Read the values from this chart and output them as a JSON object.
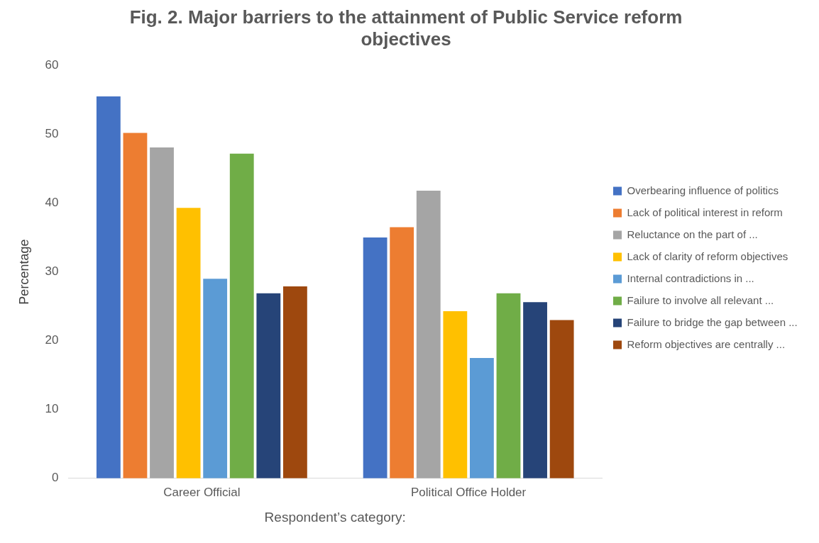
{
  "chart_data": {
    "type": "bar",
    "title": "Fig. 2. Major barriers to the attainment of Public Service reform objectives",
    "xlabel": "Respondent’s category:",
    "ylabel": "Percentage",
    "categories": [
      "Career Official",
      "Political Office Holder"
    ],
    "series": [
      {
        "name": "Overbearing influence of politics",
        "color": "#4472c4",
        "values": [
          55.5,
          35
        ]
      },
      {
        "name": "Lack of political interest in reform",
        "color": "#ed7d31",
        "values": [
          50.2,
          36.5
        ]
      },
      {
        "name": "Reluctance on the part of ...",
        "color": "#a5a5a5",
        "values": [
          48.1,
          41.8
        ]
      },
      {
        "name": "Lack of clarity of reform objectives",
        "color": "#ffc000",
        "values": [
          39.3,
          24.3
        ]
      },
      {
        "name": "Internal contradictions in ...",
        "color": "#5b9bd5",
        "values": [
          29,
          17.5
        ]
      },
      {
        "name": "Failure to involve all relevant ...",
        "color": "#70ad47",
        "values": [
          47.2,
          26.9
        ]
      },
      {
        "name": "Failure to bridge the gap between ...",
        "color": "#264478",
        "values": [
          26.9,
          25.6
        ]
      },
      {
        "name": "Reform objectives are centrally ...",
        "color": "#9e480e",
        "values": [
          27.9,
          23
        ]
      }
    ],
    "ylim": [
      0,
      60
    ],
    "yticks": [
      0,
      10,
      20,
      30,
      40,
      50,
      60
    ],
    "grid": false,
    "legend": "right"
  }
}
